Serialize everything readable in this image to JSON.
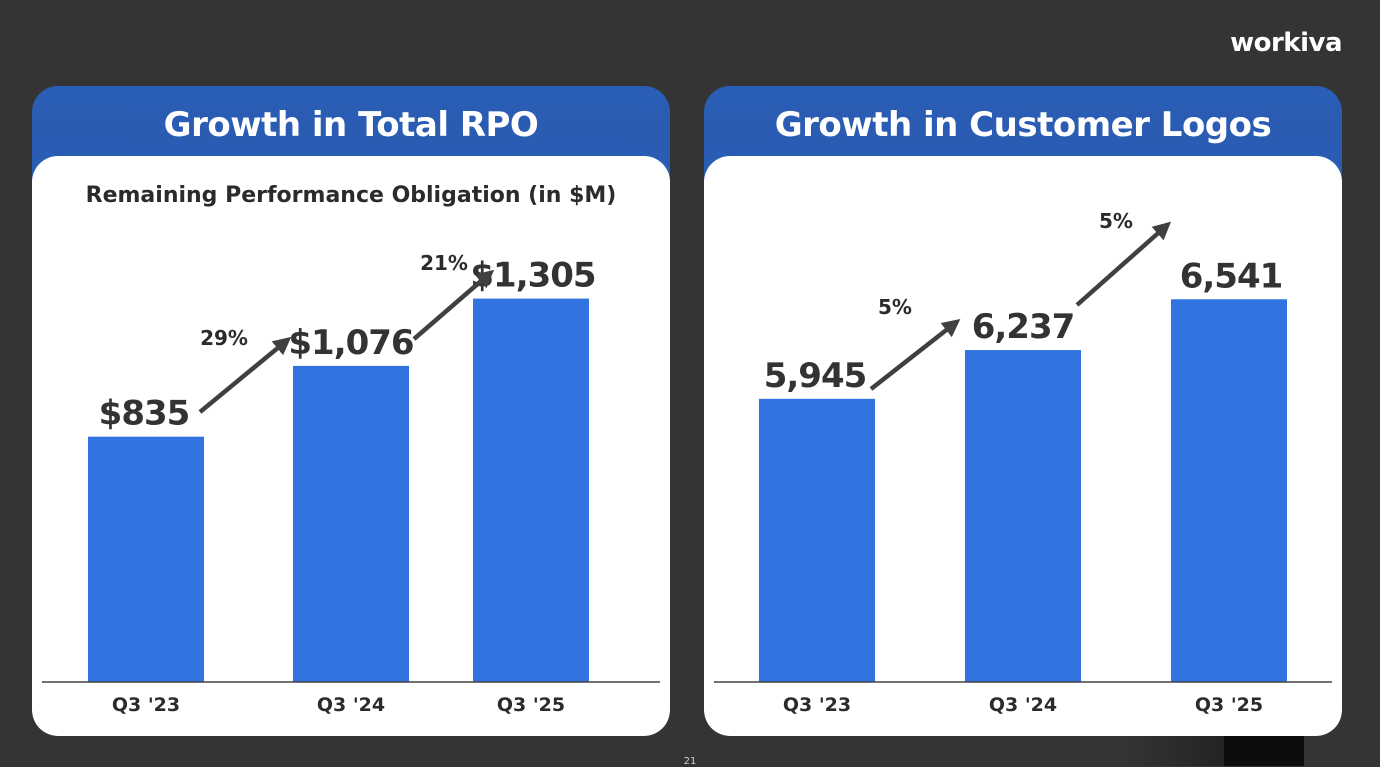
{
  "brand": {
    "logo_text": "workiva"
  },
  "page_number": "21",
  "chart_data": [
    {
      "type": "bar",
      "panel_title": "Growth in Total RPO",
      "title": "Remaining Performance Obligation (in $M)",
      "categories": [
        "Q3 '23",
        "Q3 '24",
        "Q3 '25"
      ],
      "values": [
        835,
        1076,
        1305
      ],
      "value_labels": [
        "$835",
        "$1,076",
        "$1,305"
      ],
      "growth_labels": [
        "29%",
        "21%"
      ],
      "ylim": [
        0,
        1450
      ],
      "bar_color": "#3173e0",
      "grid": false
    },
    {
      "type": "bar",
      "panel_title": "Growth in Customer Logos",
      "title": "",
      "categories": [
        "Q3 '23",
        "Q3 '24",
        "Q3 '25"
      ],
      "values": [
        5945,
        6237,
        6541
      ],
      "value_labels": [
        "5,945",
        "6,237",
        "6,541"
      ],
      "growth_labels": [
        "5%",
        "5%"
      ],
      "ylim": [
        4250,
        6800
      ],
      "bar_color": "#3173e0",
      "grid": false
    }
  ]
}
